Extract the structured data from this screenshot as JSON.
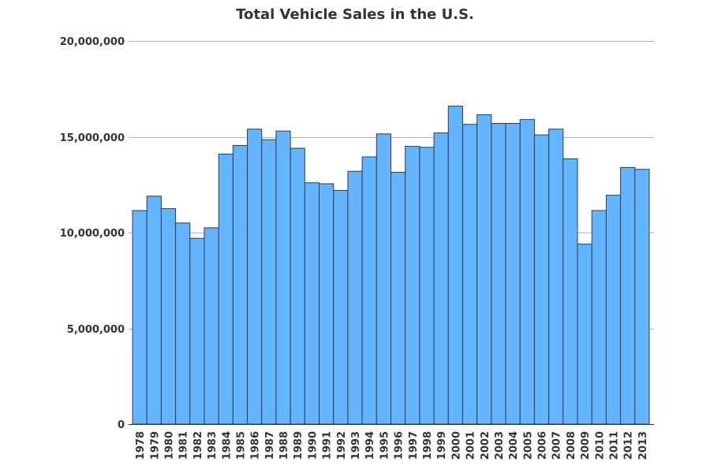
{
  "chart_data": {
    "type": "bar",
    "title": "Total Vehicle Sales in the U.S.",
    "xlabel": "",
    "ylabel": "",
    "ylim": [
      0,
      20000000
    ],
    "yticks": [
      0,
      5000000,
      10000000,
      15000000,
      20000000
    ],
    "ytick_labels": [
      "0",
      "5,000,000",
      "10,000,000",
      "15,000,000",
      "20,000,000"
    ],
    "grid": "horizontal",
    "bar_color": "#63b5ff",
    "bar_edge_color": "#3a3a3a",
    "categories": [
      "1978",
      "1979",
      "1980",
      "1981",
      "1982",
      "1983",
      "1984",
      "1985",
      "1986",
      "1987",
      "1988",
      "1989",
      "1990",
      "1991",
      "1992",
      "1993",
      "1994",
      "1995",
      "1996",
      "1997",
      "1998",
      "1999",
      "2000",
      "2001",
      "2002",
      "2003",
      "2004",
      "2005",
      "2006",
      "2007",
      "2008",
      "2009",
      "2010",
      "2011",
      "2012",
      "2013"
    ],
    "values": [
      11150000,
      11900000,
      11250000,
      10500000,
      9700000,
      10250000,
      14100000,
      14550000,
      15400000,
      14850000,
      15300000,
      14400000,
      12600000,
      12550000,
      12200000,
      13200000,
      13950000,
      15150000,
      13150000,
      14500000,
      14450000,
      15200000,
      16600000,
      15650000,
      16150000,
      15700000,
      15700000,
      15900000,
      15100000,
      15400000,
      13850000,
      9400000,
      11150000,
      11950000,
      13400000,
      13300000
    ]
  }
}
